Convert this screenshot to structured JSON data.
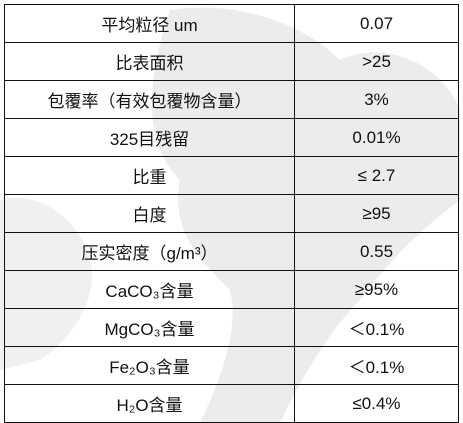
{
  "table": {
    "rows": [
      [
        "平均粒径 um",
        "0.07"
      ],
      [
        "比表面积",
        ">25"
      ],
      [
        "包覆率（有效包覆物含量）",
        "3%"
      ],
      [
        "325目残留",
        "0.01%"
      ],
      [
        "比重",
        "≤ 2.7"
      ],
      [
        "白度",
        "≥95"
      ],
      [
        "压实密度（g/m³）",
        "0.55"
      ],
      [
        "CaCO₃含量",
        "≥95%"
      ],
      [
        "MgCO₃含量",
        "＜0.1%"
      ],
      [
        "Fe₂O₃含量",
        "＜0.1%"
      ],
      [
        "H₂O含量",
        "≤0.4%"
      ]
    ]
  }
}
